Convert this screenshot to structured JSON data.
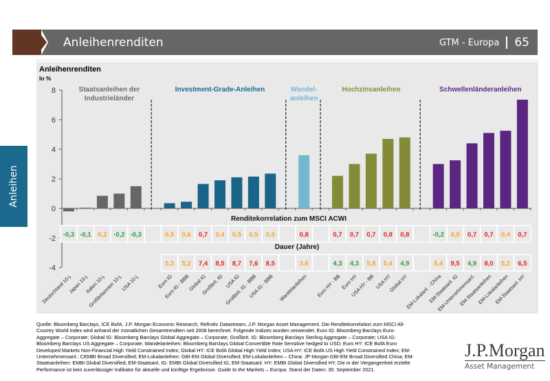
{
  "header": {
    "title": "Anleihenrenditen",
    "series": "GTM - Europa",
    "page": "65"
  },
  "side_tab": "Anleihen",
  "chart_data": {
    "type": "bar",
    "title": "Anleihenrenditen",
    "ylabel": "In %",
    "ylim": [
      -4,
      8
    ],
    "yticks": [
      "8",
      "6",
      "4",
      "2",
      "0",
      "-2",
      "-4"
    ],
    "groups": [
      {
        "name": "Staatsanleihen der Industrieländer",
        "lines": [
          "Staatsanleihen der",
          "Industrieländer"
        ],
        "color": "#6d6d6d",
        "bar_color": "#666666",
        "categories": [
          "Deutschland 10-j.",
          "Japan 10-j.",
          "Italien 10-j.",
          "Großbritannien 10-j.",
          "USA 10-j."
        ],
        "values": [
          -0.2,
          0.05,
          0.85,
          1.0,
          1.5
        ],
        "correlation": [
          "-0,3",
          "-0,1",
          "0,2",
          "-0,2",
          "-0,3"
        ],
        "duration": [
          null,
          null,
          null,
          null,
          null
        ]
      },
      {
        "name": "Investment-Grade-Anleihen",
        "lines": [
          "Investment-Grade-Anleihen"
        ],
        "color": "#1b6a8e",
        "bar_color": "#1a6389",
        "categories": [
          "Euro IG",
          "Euro IG - BBB",
          "Global IG",
          "Großbrit. IG",
          "USA IG",
          "Großbrit. IG - BBB",
          "USA IG - BBB"
        ],
        "values": [
          0.35,
          0.45,
          1.65,
          1.9,
          2.1,
          2.15,
          2.35
        ],
        "correlation": [
          "0,5",
          "0,6",
          "0,7",
          "0,4",
          "0,5",
          "0,5",
          "0,5"
        ],
        "duration": [
          "5,3",
          "5,2",
          "7,4",
          "8,5",
          "8,7",
          "7,6",
          "8,5"
        ]
      },
      {
        "name": "Wandelanleihen",
        "lines": [
          "Wandel-",
          "anleihen"
        ],
        "color": "#74b8d6",
        "bar_color": "#74b7d3",
        "categories": [
          "Wandelanleihen"
        ],
        "values": [
          3.6
        ],
        "correlation": [
          "0,8"
        ],
        "duration": [
          "3,6"
        ]
      },
      {
        "name": "Hochzinsanleihen",
        "lines": [
          "Hochzinsanleihen"
        ],
        "color": "#8a8c3a",
        "bar_color": "#838a38",
        "categories": [
          "Euro HY - BB",
          "Euro HY",
          "USA HY - BB",
          "USA HY",
          "Global HY"
        ],
        "values": [
          2.2,
          3.0,
          3.7,
          4.7,
          4.8
        ],
        "correlation": [
          "0,7",
          "0,7",
          "0,7",
          "0,8",
          "0,8"
        ],
        "duration": [
          "4,3",
          "4,3",
          "5,8",
          "5,4",
          "4,9"
        ]
      },
      {
        "name": "Schwellenländeranleihen",
        "lines": [
          "Schwellenländeranleihen"
        ],
        "color": "#5c2a82",
        "bar_color": "#5a2680",
        "categories": [
          "EM-Lokalanl. - China",
          "EM-Staatsanl. IG",
          "EM-Unternehmensanl.",
          "EM-Staatsanleihen",
          "EM-Lokalanleihen",
          "EM-Staatsanl. HY"
        ],
        "values": [
          3.0,
          3.25,
          4.4,
          5.1,
          5.25,
          7.35
        ],
        "correlation": [
          "-0,2",
          "0,5",
          "0,7",
          "0,7",
          "0,4",
          "0,7"
        ],
        "duration": [
          "5,4",
          "9,5",
          "4,9",
          "8,0",
          "5,2",
          "6,5"
        ]
      }
    ],
    "correlation_title": "Renditekorrelation zum MSCI ACWI",
    "duration_title": "Dauer (Jahre)",
    "value_colors": {
      "low": "#2e9a3e",
      "mid": "#f5a623",
      "high": "#e3211c"
    }
  },
  "footer": {
    "text": "Quelle: Bloomberg Barclays, ICE BofA, J.P. Morgan Economic Research, Refinitiv Datastream, J.P. Morgan Asset Management. Die Renditekorrelation zum MSCI All-Country World Index wird anhand der monatlichen Gesamtrenditen seit 2008 berechnet. Folgende Indizes wurden verwendet: Euro IG: Bloomberg Barclays Euro-Aggregate – Corporate; Global IG: Bloomberg Barclays Global Aggregate – Corporate; Großbrit. IG: Bloomberg Barclays Sterling Aggregate – Corporate; USA IG: Bloomberg Barclays US Aggregate – Corporate; Wandelanleihen: Bloomberg Barclays Global Convertible Rate Sensitive hedged to USD; Euro HY: ICE BofA Euro Developed Markets Non-Financial High Yield Constrained Index; Global HY: ICE BofA Global High Yield Index; USA HY: ICE BofA US High Yield Constrained Index; EM-Unternehmensanl.: CEMBI Broad Diversified; EM-Lokalanleihen: GBI-EM Global Diversified; EM-Lokalanleihen – China: JP Morgan GBI-EM Broad Diversified China; EM-Staatsanleihen: EMBI Global Diversified; EM-Staatsanl. IG: EMBI Global Diversified IG; EM-Staatsanl. HY: EMBI Global Diversified HY. Die in der Vergangenheit erzielte Performance ist kein zuverlässiger Indikator für aktuelle und künftige Ergebnisse.",
    "guide": "Guide to the Markets – Europa",
    "date": ". Stand der Daten: 30. September 2021."
  },
  "logo": {
    "line1": "J.P.Morgan",
    "line2": "Asset Management"
  }
}
